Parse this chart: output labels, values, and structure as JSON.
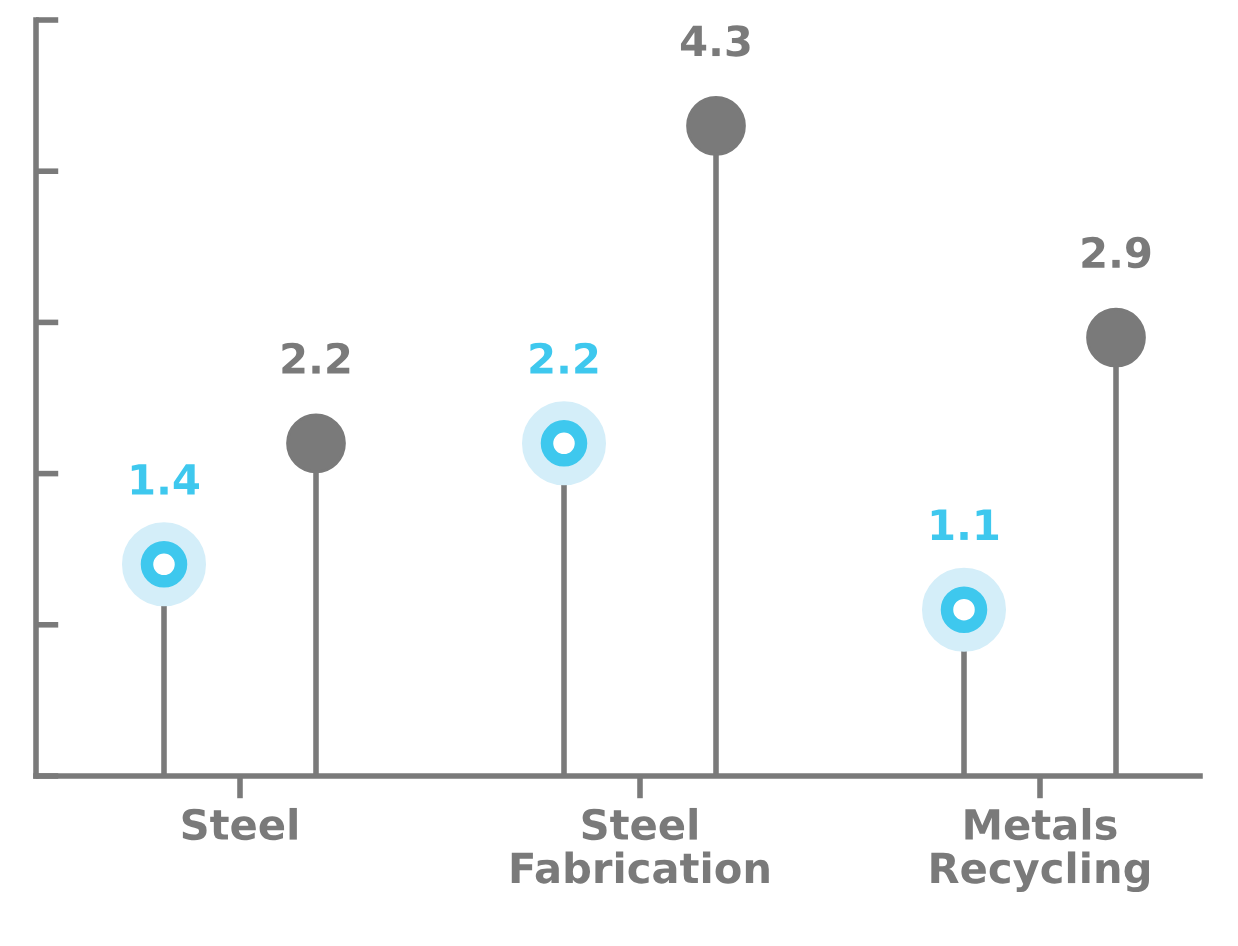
{
  "chart_data": {
    "type": "lollipop",
    "categories": [
      "Steel",
      "Steel\nFabrication",
      "Metals\nRecycling"
    ],
    "series": [
      {
        "color": "#3ec8ee",
        "values": [
          1.4,
          2.2,
          1.1
        ]
      },
      {
        "color": "#7a7a7a",
        "values": [
          2.2,
          4.3,
          2.9
        ]
      }
    ],
    "ylim": [
      0,
      5
    ],
    "yticks": [
      {
        "value": 0,
        "label": null
      },
      {
        "value": 1,
        "label": null
      },
      {
        "value": 2,
        "label": null
      },
      {
        "value": 3,
        "label": null
      },
      {
        "value": 4,
        "label": null
      },
      {
        "value": 5,
        "label": null
      }
    ],
    "tick_labels": "x",
    "data_labels": true,
    "grid": false,
    "legend": false,
    "marker": "circle"
  }
}
